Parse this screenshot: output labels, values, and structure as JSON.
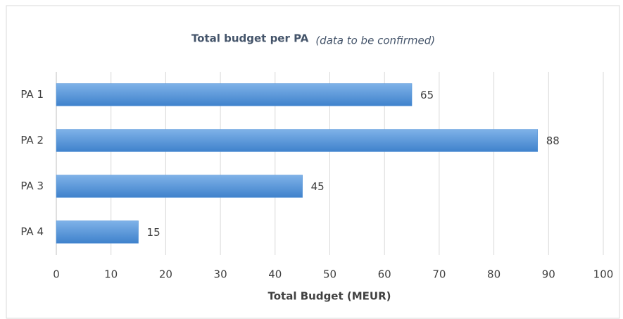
{
  "chart_data": {
    "type": "bar",
    "orientation": "horizontal",
    "title": "Total budget per PA",
    "subtitle": "(data to be confirmed)",
    "x_label": "Total Budget (MEUR)",
    "categories": [
      "PA 1",
      "PA 2",
      "PA 3",
      "PA 4"
    ],
    "values": [
      65,
      88,
      45,
      15
    ],
    "color": "#4d8fd6",
    "xlim": [
      0,
      100
    ],
    "xticks": [
      0,
      10,
      20,
      30,
      40,
      50,
      60,
      70,
      80,
      90,
      100
    ],
    "grid": true
  }
}
